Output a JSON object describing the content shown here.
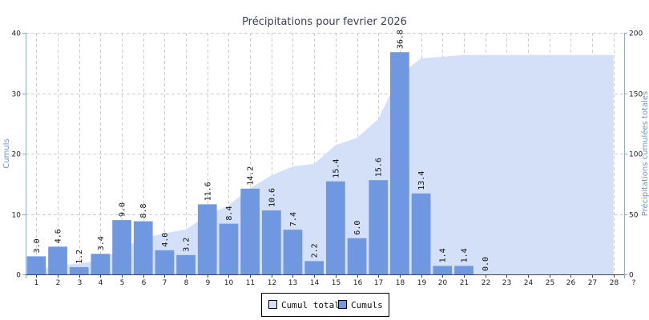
{
  "chart_data": {
    "type": "bar",
    "title": "Précipitations pour fevrier 2026",
    "ylabel_left": "Cumuls",
    "ylabel_right": "Précipitations cumulées totales",
    "x_extra_tick": "?",
    "ylim_left": [
      0,
      40
    ],
    "yticks_left": [
      0,
      10,
      20,
      30,
      40
    ],
    "ylim_right": [
      0,
      200
    ],
    "yticks_right": [
      0,
      50,
      100,
      150,
      200
    ],
    "grid": true,
    "legend_position": "bottom-center",
    "categories": [
      "1",
      "2",
      "3",
      "4",
      "5",
      "6",
      "7",
      "8",
      "9",
      "10",
      "11",
      "12",
      "13",
      "14",
      "15",
      "16",
      "17",
      "18",
      "19",
      "20",
      "21",
      "22",
      "23",
      "24",
      "25",
      "26",
      "27",
      "28"
    ],
    "series": [
      {
        "name": "Cumuls",
        "type": "bar",
        "axis": "left",
        "color": "#6f98e0",
        "values": [
          3.0,
          4.6,
          1.2,
          3.4,
          9.0,
          8.8,
          4.0,
          3.2,
          11.6,
          8.4,
          14.2,
          10.6,
          7.4,
          2.2,
          15.4,
          6.0,
          15.6,
          36.8,
          13.4,
          1.4,
          1.4,
          0.0,
          null,
          null,
          null,
          null,
          null,
          null
        ],
        "labels": [
          "3.0",
          "4.6",
          "1.2",
          "3.4",
          "9.0",
          "8.8",
          "4.0",
          "3.2",
          "11.6",
          "8.4",
          "14.2",
          "10.6",
          "7.4",
          "2.2",
          "15.4",
          "6.0",
          "15.6",
          "36.8",
          "13.4",
          "1.4",
          "1.4",
          "0.0",
          "",
          "",
          "",
          "",
          "",
          ""
        ]
      },
      {
        "name": "Cumul total",
        "type": "area",
        "axis": "right",
        "color": "#d3e0f8",
        "values": [
          3.0,
          7.6,
          8.8,
          12.2,
          21.2,
          30.0,
          34.0,
          37.2,
          48.8,
          57.2,
          71.4,
          82.0,
          89.4,
          91.6,
          107.0,
          113.0,
          128.6,
          165.4,
          178.8,
          180.2,
          181.6,
          181.6,
          181.6,
          181.6,
          181.6,
          181.6,
          181.6,
          181.6
        ]
      }
    ]
  }
}
